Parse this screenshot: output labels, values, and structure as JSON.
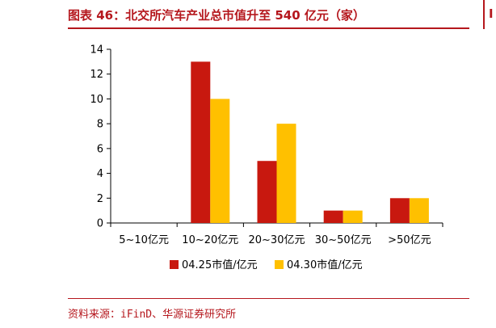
{
  "header": {
    "title": "图表 46：北交所汽车产业总市值升至 540 亿元（家）",
    "right_fragment": "I"
  },
  "footer": {
    "source": "资料来源：iFinD、华源证券研究所"
  },
  "colors": {
    "accent": "#b5171d",
    "series_1": "#c8180f",
    "series_2": "#ffc000"
  },
  "chart_data": {
    "type": "bar",
    "title": "北交所汽车产业总市值升至 540 亿元（家）",
    "categories": [
      "5~10亿元",
      "10~20亿元",
      "20~30亿元",
      "30~50亿元",
      ">50亿元"
    ],
    "series": [
      {
        "name": "04.25市值/亿元",
        "values": [
          0,
          13,
          5,
          1,
          2
        ]
      },
      {
        "name": "04.30市值/亿元",
        "values": [
          0,
          10,
          8,
          1,
          2
        ]
      }
    ],
    "ylim": [
      0,
      14
    ],
    "yticks": [
      0,
      2,
      4,
      6,
      8,
      10,
      12,
      14
    ],
    "xlabel": "",
    "ylabel": "",
    "grid": false,
    "legend_position": "bottom"
  }
}
